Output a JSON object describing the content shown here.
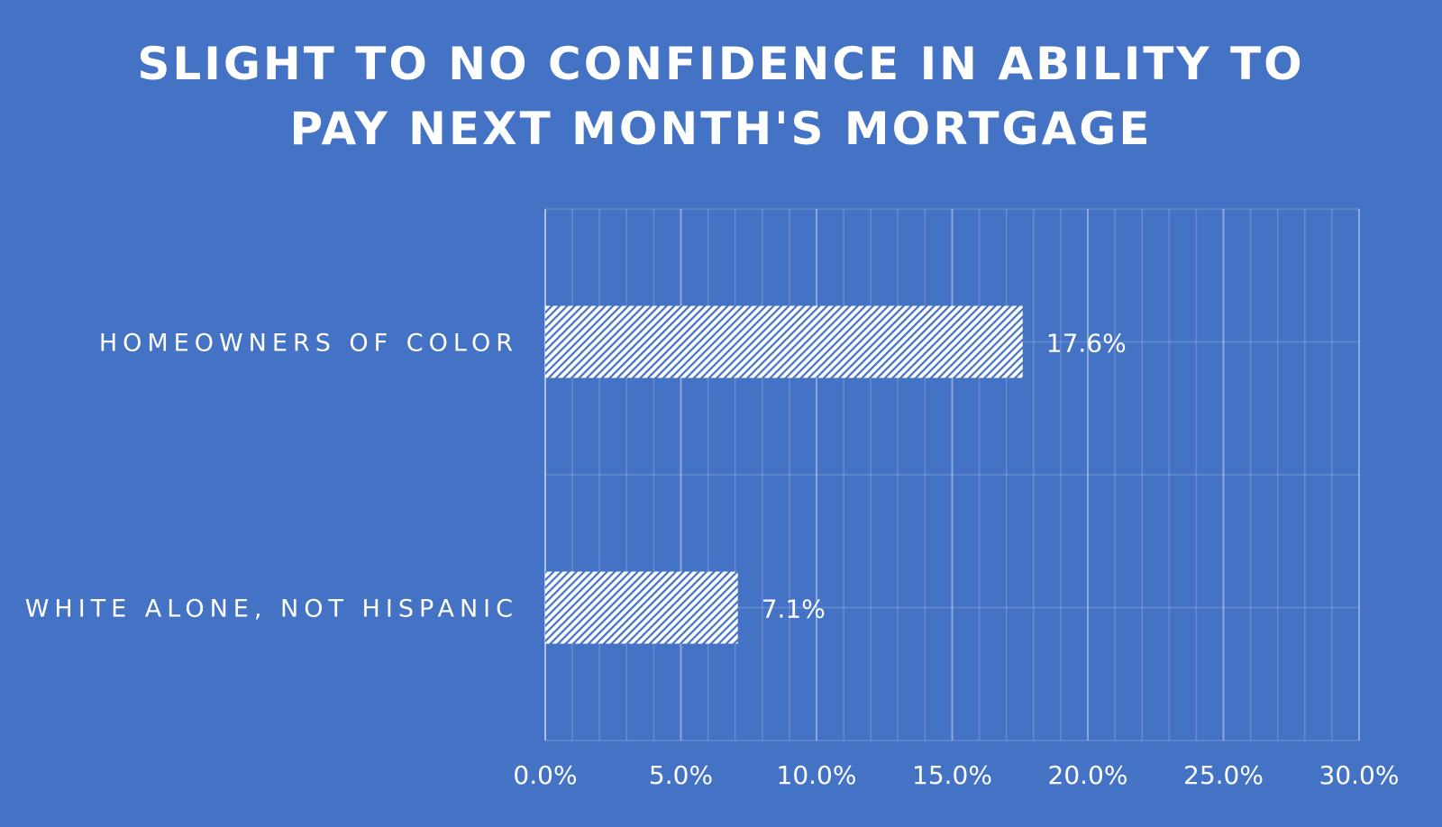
{
  "chart_data": {
    "type": "bar",
    "orientation": "horizontal",
    "title_lines": [
      "SLIGHT TO NO CONFIDENCE IN ABILITY TO",
      "PAY NEXT MONTH'S MORTGAGE"
    ],
    "categories": [
      "HOMEOWNERS OF COLOR",
      "WHITE ALONE, NOT HISPANIC"
    ],
    "values": [
      17.6,
      7.1
    ],
    "data_labels": [
      "17.6%",
      "7.1%"
    ],
    "xlim": [
      0,
      30
    ],
    "x_ticks": [
      0,
      5,
      10,
      15,
      20,
      25,
      30
    ],
    "x_tick_labels": [
      "0.0%",
      "5.0%",
      "10.0%",
      "15.0%",
      "20.0%",
      "25.0%",
      "30.0%"
    ],
    "x_minor_step": 1,
    "grid": true,
    "legend": "none",
    "bar_fill": "hatched",
    "colors": {
      "background": "#4472C4",
      "bar_hatch": "#ffffff",
      "text": "#ffffff"
    }
  }
}
